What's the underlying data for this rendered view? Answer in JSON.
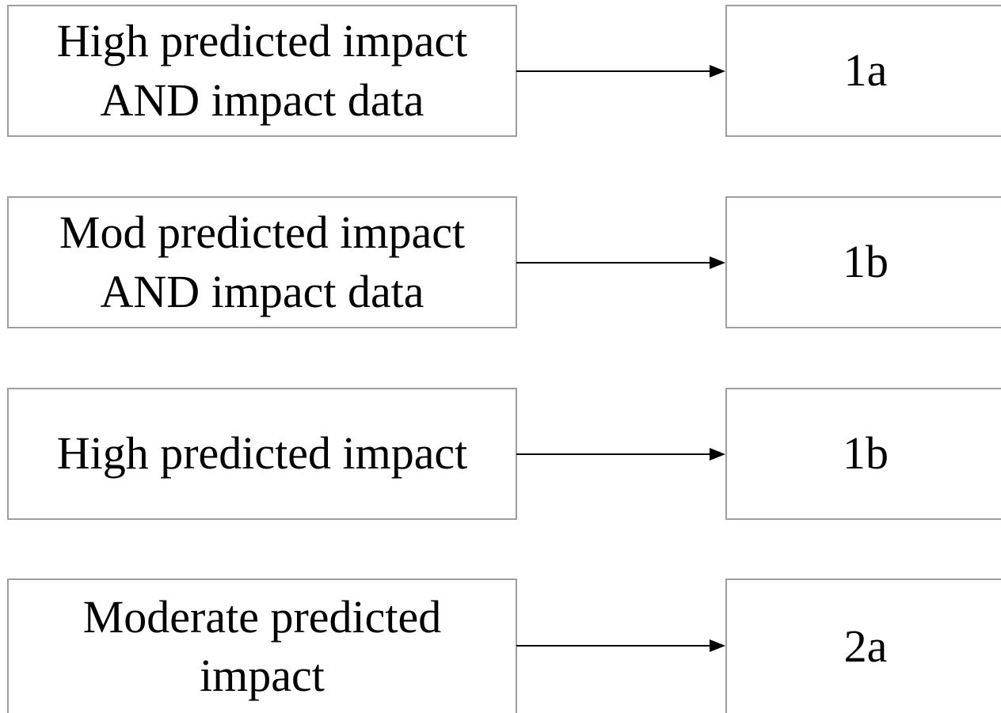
{
  "rows": [
    {
      "source": "High predicted impact\nAND impact data",
      "target": "1a"
    },
    {
      "source": "Mod predicted impact\nAND impact data",
      "target": "1b"
    },
    {
      "source": "High predicted impact",
      "target": "1b"
    },
    {
      "source": "Moderate predicted\nimpact",
      "target": "2a"
    }
  ],
  "colors": {
    "box_border": "#9e9e9e",
    "arrow": "#000000",
    "text": "#000000"
  }
}
